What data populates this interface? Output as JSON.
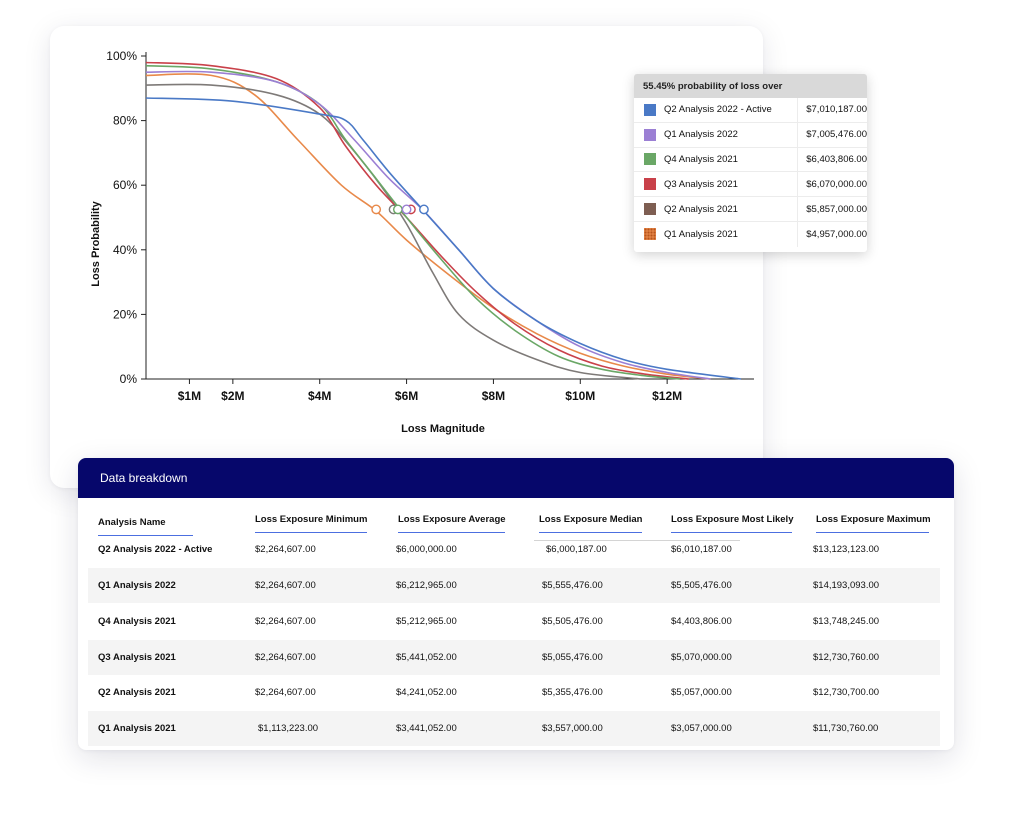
{
  "chart": {
    "ylabel": "Loss Probability",
    "xlabel": "Loss Magnitude",
    "y_ticks": [
      "0%",
      "20%",
      "40%",
      "60%",
      "80%",
      "100%"
    ],
    "x_ticks": [
      "$1M",
      "$2M",
      "$4M",
      "$6M",
      "$8M",
      "$10M",
      "$12M"
    ]
  },
  "chart_data": {
    "type": "line",
    "xlabel": "Loss Magnitude",
    "ylabel": "Loss Probability",
    "xlim": [
      0,
      14
    ],
    "ylim": [
      0,
      100
    ],
    "x_tick_values": [
      1,
      2,
      4,
      6,
      8,
      10,
      12
    ],
    "y_tick_values": [
      0,
      20,
      40,
      60,
      80,
      100
    ],
    "grid": false,
    "series": [
      {
        "name": "Q2 Analysis 2022 - Active",
        "color": "#4a79c6",
        "x": [
          0,
          2,
          4,
          4.6,
          5,
          5.6,
          6.4,
          7.2,
          8,
          9,
          10,
          11,
          12,
          13.7
        ],
        "y": [
          87,
          86,
          82,
          80,
          74,
          64,
          52,
          40,
          28,
          18,
          11,
          6,
          3,
          0
        ],
        "marker": {
          "x": 6.4,
          "y": 52.5
        }
      },
      {
        "name": "Q1 Analysis 2022",
        "color": "#9b7fd4",
        "x": [
          0,
          1.5,
          3,
          4,
          4.8,
          5.6,
          6.4,
          7.2,
          8,
          9,
          10,
          11,
          12,
          13
        ],
        "y": [
          95,
          95,
          92,
          85,
          74,
          62,
          52,
          40,
          28,
          18,
          10,
          5,
          2,
          0
        ],
        "marker": {
          "x": 6.0,
          "y": 52.5
        }
      },
      {
        "name": "Q4 Analysis 2021",
        "color": "#6aa766",
        "x": [
          0,
          1.5,
          3,
          4,
          4.6,
          5.3,
          6,
          6.8,
          7.6,
          8.5,
          9.5,
          10.5,
          11.5,
          12.3
        ],
        "y": [
          97,
          96,
          92,
          85,
          74,
          62,
          50,
          37,
          25,
          15,
          7,
          3,
          1,
          0
        ],
        "marker": {
          "x": 5.8,
          "y": 52.5
        }
      },
      {
        "name": "Q3 Analysis 2021",
        "color": "#c9414a",
        "x": [
          0,
          1.5,
          3,
          4,
          4.6,
          5.3,
          6,
          6.8,
          7.6,
          8.5,
          9.5,
          10.5,
          11.5,
          12.5
        ],
        "y": [
          98,
          97,
          93,
          84,
          72,
          60,
          50,
          38,
          27,
          17,
          9,
          4,
          1.5,
          0
        ],
        "marker": {
          "x": 6.1,
          "y": 52.5
        }
      },
      {
        "name": "Q2 Analysis 2021",
        "color": "#7e7a78",
        "x": [
          0,
          1.5,
          3,
          4,
          4.7,
          5.4,
          6,
          6.6,
          7.2,
          8,
          9,
          10,
          11.4
        ],
        "y": [
          91,
          91,
          88,
          82,
          72,
          60,
          48,
          33,
          20,
          12,
          6,
          2,
          0
        ],
        "marker": {
          "x": 5.7,
          "y": 52.5
        }
      },
      {
        "name": "Q1 Analysis 2021",
        "color": "#e8894a",
        "x": [
          0,
          1.5,
          2.5,
          3.5,
          4.5,
          5.3,
          6,
          7,
          8,
          9,
          10,
          11,
          12,
          13
        ],
        "y": [
          94,
          94,
          88,
          74,
          60,
          52,
          43,
          32,
          22,
          14,
          8,
          4,
          1.5,
          0
        ],
        "marker": {
          "x": 5.3,
          "y": 52.5
        }
      }
    ]
  },
  "tooltip": {
    "title": "55.45% probability of loss over",
    "rows": [
      {
        "name": "Q2 Analysis 2022 - Active",
        "value": "$7,010,187.00",
        "color": "#4a79c6"
      },
      {
        "name": "Q1 Analysis 2022",
        "value": "$7,005,476.00",
        "color": "#9b7fd4"
      },
      {
        "name": "Q4 Analysis 2021",
        "value": "$6,403,806.00",
        "color": "#6aa766"
      },
      {
        "name": "Q3 Analysis 2021",
        "value": "$6,070,000.00",
        "color": "#c9414a"
      },
      {
        "name": "Q2 Analysis 2021",
        "value": "$5,857,000.00",
        "color": "#7e5e52"
      },
      {
        "name": "Q1 Analysis 2021",
        "value": "$4,957,000.00",
        "color": "#e8894a"
      }
    ]
  },
  "table": {
    "title": "Data breakdown",
    "columns": [
      "Analysis Name",
      "Loss Exposure Minimum",
      "Loss Exposure Average",
      "Loss Exposure Median",
      "Loss Exposure Most Likely",
      "Loss Exposure Maximum"
    ],
    "rows": [
      [
        "Q2 Analysis 2022 - Active",
        "$2,264,607.00",
        "$6,000,000.00",
        "$6,000,187.00",
        "$6,010,187.00",
        "$13,123,123.00"
      ],
      [
        "Q1 Analysis 2022",
        "$2,264,607.00",
        "$6,212,965.00",
        "$5,555,476.00",
        "$5,505,476.00",
        "$14,193,093.00"
      ],
      [
        "Q4 Analysis 2021",
        "$2,264,607.00",
        "$5,212,965.00",
        "$5,505,476.00",
        "$4,403,806.00",
        "$13,748,245.00"
      ],
      [
        "Q3 Analysis 2021",
        "$2,264,607.00",
        "$5,441,052.00",
        "$5,055,476.00",
        "$5,070,000.00",
        "$12,730,760.00"
      ],
      [
        "Q2 Analysis 2021",
        "$2,264,607.00",
        "$4,241,052.00",
        "$5,355,476.00",
        "$5,057,000.00",
        "$12,730,700.00"
      ],
      [
        "Q1 Analysis 2021",
        "$1,113,223.00",
        "$3,441,052.00",
        "$3,557,000.00",
        "$3,057,000.00",
        "$11,730,760.00"
      ]
    ]
  }
}
